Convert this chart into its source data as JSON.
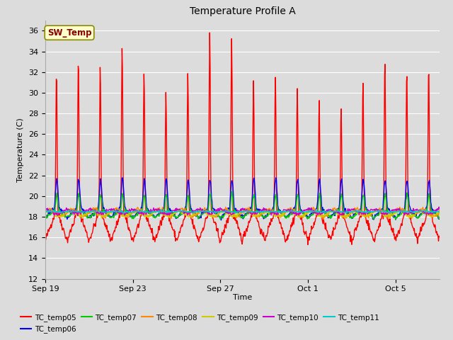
{
  "title": "Temperature Profile A",
  "xlabel": "Time",
  "ylabel": "Temperature (C)",
  "ylim": [
    12,
    37
  ],
  "yticks": [
    12,
    14,
    16,
    18,
    20,
    22,
    24,
    26,
    28,
    30,
    32,
    34,
    36
  ],
  "background_color": "#dcdcdc",
  "plot_bg_color": "#dcdcdc",
  "sw_temp_label": "SW_Temp",
  "sw_temp_box_color": "#ffffcc",
  "sw_temp_text_color": "#8b0000",
  "sw_temp_border_color": "#8b8b00",
  "series": [
    {
      "name": "TC_temp05",
      "color": "#ff0000",
      "lw": 1.0
    },
    {
      "name": "TC_temp06",
      "color": "#0000ff",
      "lw": 1.0
    },
    {
      "name": "TC_temp07",
      "color": "#00cc00",
      "lw": 1.0
    },
    {
      "name": "TC_temp08",
      "color": "#ff8800",
      "lw": 1.0
    },
    {
      "name": "TC_temp09",
      "color": "#cccc00",
      "lw": 1.0
    },
    {
      "name": "TC_temp10",
      "color": "#cc00cc",
      "lw": 1.0
    },
    {
      "name": "TC_temp11",
      "color": "#00cccc",
      "lw": 1.0
    }
  ],
  "xtick_labels": [
    "Sep 19",
    "Sep 23",
    "Sep 27",
    "Oct 1",
    "Oct 5"
  ],
  "xtick_days_offset": [
    0,
    4,
    8,
    12,
    16
  ],
  "n_days": 18,
  "n_per_day": 48
}
